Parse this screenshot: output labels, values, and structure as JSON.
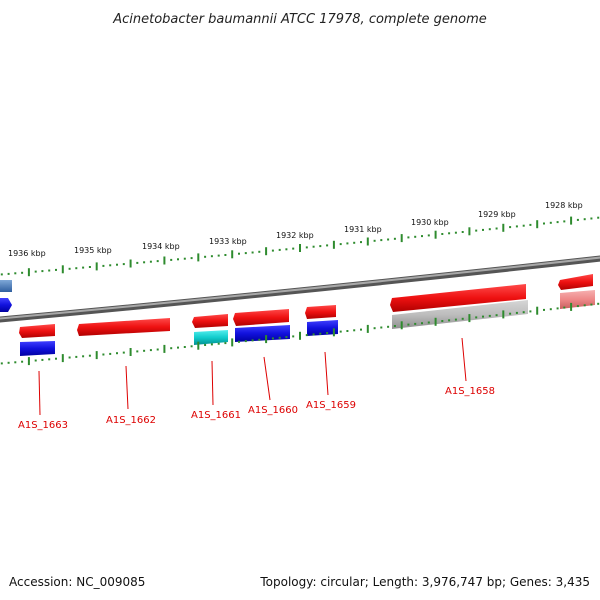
{
  "title": "Acinetobacter baumannii ATCC 17978, complete genome",
  "scale": {
    "unit": "kbp",
    "ticks": [
      {
        "label": "1936 kbp"
      },
      {
        "label": "1935 kbp"
      },
      {
        "label": "1934 kbp"
      },
      {
        "label": "1933 kbp"
      },
      {
        "label": "1932 kbp"
      },
      {
        "label": "1931 kbp"
      },
      {
        "label": "1930 kbp"
      },
      {
        "label": "1929 kbp"
      },
      {
        "label": "1928 kbp"
      }
    ]
  },
  "genes": [
    {
      "label": "A1S_1663",
      "strand": "forward",
      "color": "#ee1111"
    },
    {
      "label": "A1S_1662",
      "strand": "forward",
      "color": "#ee1111"
    },
    {
      "label": "A1S_1661",
      "strand": "forward",
      "color": "#ee1111"
    },
    {
      "label": "A1S_1660",
      "strand": "forward",
      "color": "#ee1111"
    },
    {
      "label": "A1S_1659",
      "strand": "forward",
      "color": "#ee1111"
    },
    {
      "label": "A1S_1658",
      "strand": "forward",
      "color": "#ee1111"
    }
  ],
  "colors": {
    "backbone": "#7a7a7a",
    "gene_red": "#ee1111",
    "cog_blue": "#1111dd",
    "cog_cyan": "#11cccc",
    "cog_gray": "#a8a8a8",
    "cog_pink": "#ee8888",
    "cog_steel": "#4a7fbf",
    "gc_track": "#2e8b2e",
    "label_red": "#dd0000"
  },
  "footer": {
    "accession": "Accession: NC_009085",
    "summary": "Topology: circular; Length: 3,976,747 bp; Genes: 3,435"
  }
}
